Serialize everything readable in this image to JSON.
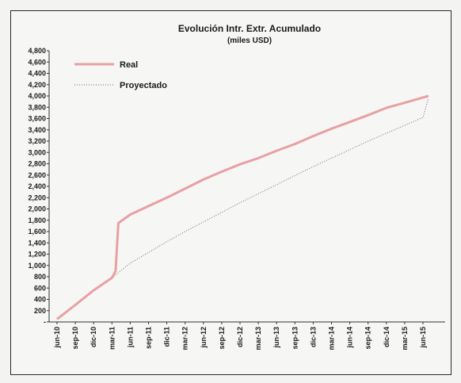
{
  "chart_data": {
    "type": "line",
    "title": "Evolución Intr. Extr. Acumulado",
    "subtitle": "(miles USD)",
    "xlabel": "",
    "ylabel": "",
    "x_tick_labels": [
      "jun-10",
      "sep-10",
      "dic-10",
      "mar-11",
      "jun-11",
      "sep-11",
      "dic-11",
      "mar-12",
      "jun-12",
      "sep-12",
      "dic-12",
      "mar-13",
      "jun-13",
      "sep-13",
      "dic-13",
      "mar-14",
      "jun-14",
      "sep-14",
      "dic-14",
      "mar-15",
      "jun-15"
    ],
    "y_tick_labels": [
      "-",
      "200",
      "400",
      "600",
      "800",
      "1,000",
      "1,200",
      "1,400",
      "1,600",
      "1,800",
      "2,000",
      "2,200",
      "2,400",
      "2,600",
      "2,800",
      "3,000",
      "3,200",
      "3,400",
      "3,600",
      "3,800",
      "4,000",
      "4,200",
      "4,400",
      "4,600",
      "4,800"
    ],
    "ylim": [
      0,
      4800
    ],
    "grid": false,
    "legend_position": "top-left",
    "series": [
      {
        "name": "Real",
        "color": "#e8a0a4",
        "style": "solid",
        "x": [
          0,
          1,
          2,
          3,
          3.2,
          3.35,
          4,
          5,
          6,
          7,
          8,
          9,
          10,
          11,
          12,
          13,
          14,
          15,
          16,
          17,
          18,
          19,
          20.3
        ],
        "values": [
          50,
          300,
          560,
          780,
          900,
          1750,
          1900,
          2050,
          2200,
          2360,
          2520,
          2660,
          2790,
          2900,
          3030,
          3150,
          3290,
          3420,
          3540,
          3660,
          3790,
          3880,
          4000
        ]
      },
      {
        "name": "Proyectado",
        "color": "#6b6b6b",
        "style": "dotted",
        "x": [
          0,
          1,
          2,
          3,
          4,
          5,
          6,
          7,
          8,
          9,
          10,
          11,
          12,
          13,
          14,
          15,
          16,
          17,
          18,
          19,
          20,
          20.3
        ],
        "values": [
          50,
          300,
          560,
          780,
          1040,
          1230,
          1420,
          1600,
          1770,
          1940,
          2110,
          2270,
          2430,
          2590,
          2750,
          2900,
          3050,
          3200,
          3340,
          3480,
          3620,
          3960
        ]
      }
    ]
  }
}
